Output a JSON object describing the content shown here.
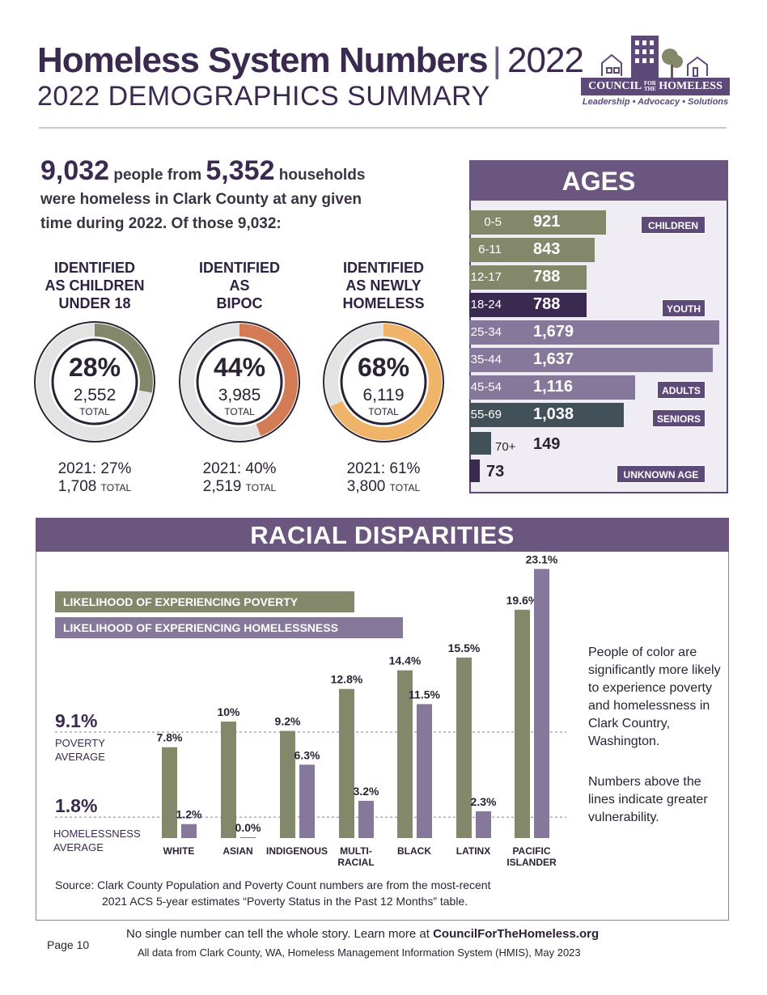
{
  "header": {
    "title": "Homeless System Numbers",
    "title_sep": "|",
    "title_year": "2022",
    "subtitle": "2022 DEMOGRAPHICS SUMMARY"
  },
  "logo": {
    "name_a": "COUNCIL",
    "name_small_1": "FOR",
    "name_small_2": "THE",
    "name_b": "HOMELESS",
    "tagline": "Leadership • Advocacy • Solutions"
  },
  "intro": {
    "people": "9,032",
    "people_text": "people from",
    "households": "5,352",
    "households_text": "households",
    "line2": "were homeless in Clark County at any given",
    "line3": "time during 2022. Of those 9,032:"
  },
  "stats": [
    {
      "label_1": "IDENTIFIED",
      "label_2": "AS CHILDREN",
      "label_3": "UNDER 18",
      "pct": "28%",
      "fraction": 0.28,
      "total": "2,552",
      "total_label": "TOTAL",
      "prev_pct": "2021: 27%",
      "prev_total": "1,708",
      "prev_total_label": "TOTAL",
      "color": "#84886b"
    },
    {
      "label_1": "IDENTIFIED",
      "label_2": "AS",
      "label_3": "BIPOC",
      "pct": "44%",
      "fraction": 0.44,
      "total": "3,985",
      "total_label": "TOTAL",
      "prev_pct": "2021: 40%",
      "prev_total": "2,519",
      "prev_total_label": "TOTAL",
      "color": "#d27b55"
    },
    {
      "label_1": "IDENTIFIED",
      "label_2": "AS NEWLY",
      "label_3": "HOMELESS",
      "pct": "68%",
      "fraction": 0.68,
      "total": "6,119",
      "total_label": "TOTAL",
      "prev_pct": "2021: 61%",
      "prev_total": "3,800",
      "prev_total_label": "TOTAL",
      "color": "#f0b468"
    }
  ],
  "ages": {
    "title": "AGES",
    "max_value": 1679,
    "rows": [
      {
        "range": "0-5",
        "value": 921,
        "value_label": "921",
        "color": "#84886b"
      },
      {
        "range": "6-11",
        "value": 843,
        "value_label": "843",
        "color": "#84886b"
      },
      {
        "range": "12-17",
        "value": 788,
        "value_label": "788",
        "color": "#84886b"
      },
      {
        "range": "18-24",
        "value": 788,
        "value_label": "788",
        "color": "#3b2a4f"
      },
      {
        "range": "25-34",
        "value": 1679,
        "value_label": "1,679",
        "color": "#86789a"
      },
      {
        "range": "35-44",
        "value": 1637,
        "value_label": "1,637",
        "color": "#86789a"
      },
      {
        "range": "45-54",
        "value": 1116,
        "value_label": "1,116",
        "color": "#86789a"
      },
      {
        "range": "55-69",
        "value": 1038,
        "value_label": "1,038",
        "color": "#425058"
      },
      {
        "range": "70+",
        "value": 149,
        "value_label": "149",
        "color": "#425058"
      },
      {
        "range": "",
        "value": 73,
        "value_label": "73",
        "color": "#3b2a4f"
      }
    ],
    "tags": {
      "children": "CHILDREN",
      "youth": "YOUTH",
      "adults": "ADULTS",
      "seniors": "SENIORS",
      "unknown": "UNKNOWN AGE"
    }
  },
  "racial": {
    "title": "RACIAL DISPARITIES",
    "legend_poverty": "LIKELIHOOD OF EXPERIENCING POVERTY",
    "legend_homeless": "LIKELIHOOD OF EXPERIENCING HOMELESSNESS",
    "poverty_avg": "9.1%",
    "poverty_avg_l1": "POVERTY",
    "poverty_avg_l2": "AVERAGE",
    "homeless_avg": "1.8%",
    "homeless_avg_l1": "HOMELESSNESS",
    "homeless_avg_l2": "AVERAGE",
    "note": "People of color are significantly more likely to experience poverty and homelessness in Clark Country, Washington.",
    "note2": "Numbers above the lines indicate greater vulnerability.",
    "source_1": "Source:  Clark County Population and Poverty Count numbers are from the most-recent",
    "source_2": "2021 ACS 5-year estimates “Poverty Status in the Past 12 Months” table."
  },
  "chart_data": {
    "type": "bar",
    "categories": [
      "WHITE",
      "ASIAN",
      "INDIGENOUS",
      "MULTI-RACIAL",
      "BLACK",
      "LATINX",
      "PACIFIC ISLANDER"
    ],
    "series": [
      {
        "name": "LIKELIHOOD OF EXPERIENCING POVERTY",
        "values": [
          7.8,
          10,
          9.2,
          12.8,
          14.4,
          15.5,
          19.6
        ],
        "labels": [
          "7.8%",
          "10%",
          "9.2%",
          "12.8%",
          "14.4%",
          "15.5%",
          "19.6%"
        ],
        "color": "#84886b"
      },
      {
        "name": "LIKELIHOOD OF EXPERIENCING HOMELESSNESS",
        "values": [
          1.2,
          0.0,
          6.3,
          3.2,
          11.5,
          2.3,
          23.1
        ],
        "labels": [
          "1.2%",
          "0.0%",
          "6.3%",
          "3.2%",
          "11.5%",
          "2.3%",
          "23.1%"
        ],
        "color": "#86789a"
      }
    ],
    "reference_lines": [
      {
        "name": "POVERTY AVERAGE",
        "value": 9.1
      },
      {
        "name": "HOMELESSNESS AVERAGE",
        "value": 1.8
      }
    ],
    "ylim": [
      0,
      23.1
    ],
    "title": "RACIAL DISPARITIES",
    "xlabel": "",
    "ylabel": ""
  },
  "footer": {
    "page": "Page 10",
    "line1_a": "No single number can tell the whole story. Learn more at ",
    "line1_b": "CouncilForTheHomeless.org",
    "line2": "All data from Clark County, WA, Homeless Management Information System (HMIS), May 2023"
  }
}
